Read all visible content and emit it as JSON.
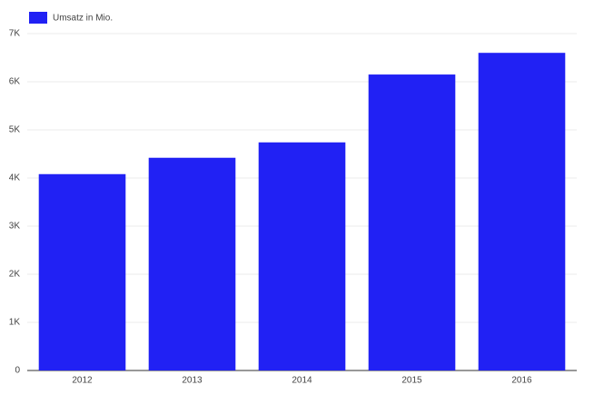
{
  "chart_data": {
    "type": "bar",
    "categories": [
      "2012",
      "2013",
      "2014",
      "2015",
      "2016"
    ],
    "series": [
      {
        "name": "Umsatz in Mio.",
        "color": "#2121f4",
        "values": [
          4080,
          4420,
          4740,
          6150,
          6600
        ]
      }
    ],
    "ylim": [
      0,
      7000
    ],
    "yticks": [
      0,
      {
        "value": 1000,
        "label": "1K"
      },
      {
        "value": 2000,
        "label": "2K"
      },
      {
        "value": 3000,
        "label": "3K"
      },
      {
        "value": 4000,
        "label": "4K"
      },
      {
        "value": 5000,
        "label": "5K"
      },
      {
        "value": 6000,
        "label": "6K"
      },
      {
        "value": 7000,
        "label": "7K"
      }
    ],
    "grid": true,
    "legend": "top-left"
  }
}
